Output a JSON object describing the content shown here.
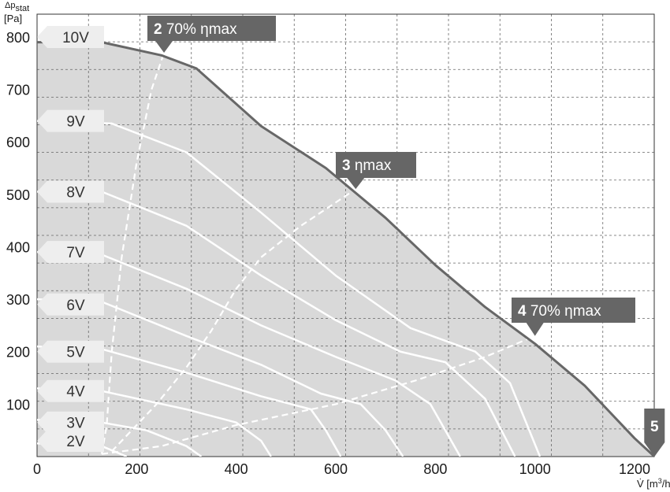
{
  "chart_data": {
    "type": "line",
    "ylabel": {
      "symbol": "Δp",
      "sub": "stat",
      "unit": "[Pa]"
    },
    "xlabel": {
      "symbol": "V̇",
      "unit_pre": "[m",
      "sup": "3",
      "unit_post": "/h]"
    },
    "xlim": [
      0,
      1250
    ],
    "ylim": [
      0,
      820
    ],
    "x_ticks": [
      0,
      200,
      400,
      600,
      800,
      1000,
      1200
    ],
    "y_ticks": [
      100,
      200,
      300,
      400,
      500,
      600,
      700,
      800
    ],
    "grid": true,
    "colors": {
      "area": "#d9d9d9",
      "envelope": "#676767",
      "voltage_curve": "#ffffff",
      "grid": "#666666",
      "tag": "#666666",
      "voltage_tag": "#eeeeee"
    },
    "envelope": {
      "name": "10V",
      "points": [
        [
          0,
          790
        ],
        [
          130,
          790
        ],
        [
          250,
          765
        ],
        [
          320,
          740
        ],
        [
          450,
          630
        ],
        [
          580,
          550
        ],
        [
          700,
          455
        ],
        [
          800,
          365
        ],
        [
          900,
          285
        ],
        [
          1000,
          215
        ],
        [
          1100,
          135
        ],
        [
          1200,
          35
        ],
        [
          1240,
          0
        ]
      ]
    },
    "voltage_curves": [
      {
        "name": "9V",
        "points": [
          [
            0,
            640
          ],
          [
            150,
            635
          ],
          [
            300,
            580
          ],
          [
            450,
            465
          ],
          [
            600,
            345
          ],
          [
            750,
            245
          ],
          [
            880,
            200
          ],
          [
            950,
            140
          ],
          [
            1010,
            0
          ]
        ]
      },
      {
        "name": "8V",
        "points": [
          [
            0,
            505
          ],
          [
            130,
            505
          ],
          [
            300,
            440
          ],
          [
            450,
            345
          ],
          [
            600,
            260
          ],
          [
            730,
            200
          ],
          [
            820,
            180
          ],
          [
            900,
            110
          ],
          [
            960,
            0
          ]
        ]
      },
      {
        "name": "7V",
        "points": [
          [
            0,
            390
          ],
          [
            130,
            385
          ],
          [
            300,
            320
          ],
          [
            450,
            250
          ],
          [
            600,
            190
          ],
          [
            720,
            145
          ],
          [
            790,
            100
          ],
          [
            850,
            0
          ]
        ]
      },
      {
        "name": "6V",
        "points": [
          [
            0,
            300
          ],
          [
            130,
            295
          ],
          [
            300,
            230
          ],
          [
            450,
            175
          ],
          [
            570,
            120
          ],
          [
            650,
            100
          ],
          [
            700,
            50
          ],
          [
            735,
            0
          ]
        ]
      },
      {
        "name": "5V",
        "points": [
          [
            0,
            210
          ],
          [
            130,
            205
          ],
          [
            300,
            160
          ],
          [
            450,
            115
          ],
          [
            550,
            90
          ],
          [
            580,
            50
          ],
          [
            610,
            0
          ]
        ]
      },
      {
        "name": "4V",
        "points": [
          [
            0,
            130
          ],
          [
            130,
            125
          ],
          [
            300,
            90
          ],
          [
            400,
            65
          ],
          [
            450,
            30
          ],
          [
            470,
            0
          ]
        ]
      },
      {
        "name": "3V",
        "points": [
          [
            0,
            70
          ],
          [
            130,
            65
          ],
          [
            220,
            50
          ],
          [
            300,
            20
          ],
          [
            330,
            0
          ]
        ]
      },
      {
        "name": "2V",
        "points": [
          [
            0,
            25
          ],
          [
            130,
            20
          ],
          [
            180,
            0
          ]
        ]
      }
    ],
    "efficiency_lines": [
      {
        "name": "2 70% ηmax",
        "points": [
          [
            130,
            5
          ],
          [
            140,
            60
          ],
          [
            150,
            200
          ],
          [
            170,
            380
          ],
          [
            200,
            560
          ],
          [
            230,
            700
          ],
          [
            255,
            770
          ]
        ]
      },
      {
        "name": "3 ηmax",
        "points": [
          [
            150,
            10
          ],
          [
            240,
            100
          ],
          [
            300,
            170
          ],
          [
            350,
            240
          ],
          [
            400,
            320
          ],
          [
            450,
            380
          ],
          [
            530,
            440
          ],
          [
            640,
            510
          ]
        ]
      },
      {
        "name": "4 70% ηmax",
        "points": [
          [
            130,
            5
          ],
          [
            250,
            20
          ],
          [
            400,
            60
          ],
          [
            600,
            100
          ],
          [
            760,
            145
          ],
          [
            900,
            190
          ],
          [
            1000,
            230
          ]
        ]
      }
    ],
    "operating_points": [
      {
        "number": "2",
        "label": "70% ηmax",
        "x": 255,
        "y": 770
      },
      {
        "number": "3",
        "label": "ηmax",
        "x": 640,
        "y": 510
      },
      {
        "number": "4",
        "label": "70% ηmax",
        "x": 1000,
        "y": 230
      },
      {
        "number": "5",
        "label": "",
        "x": 1240,
        "y": 0
      }
    ],
    "voltage_labels": [
      {
        "label": "10V",
        "y": 800
      },
      {
        "label": "9V",
        "y": 640
      },
      {
        "label": "8V",
        "y": 505
      },
      {
        "label": "7V",
        "y": 390
      },
      {
        "label": "6V",
        "y": 290
      },
      {
        "label": "5V",
        "y": 200
      },
      {
        "label": "4V",
        "y": 125
      },
      {
        "label": "3V",
        "y": 65
      },
      {
        "label": "2V",
        "y": 30
      }
    ]
  }
}
